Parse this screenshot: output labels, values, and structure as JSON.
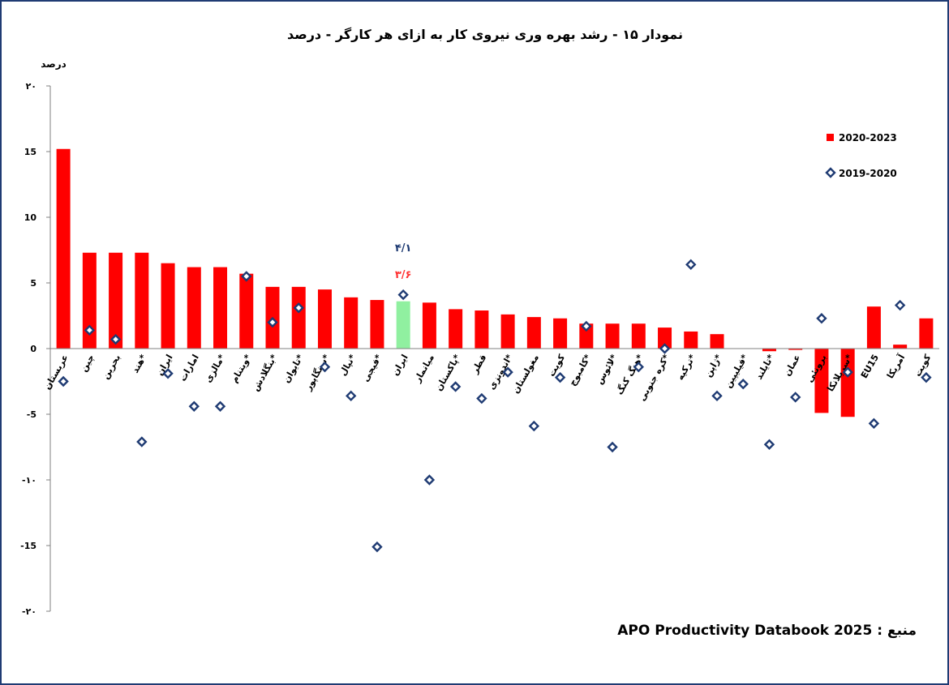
{
  "source": {
    "label": "منبع :",
    "text": "APO Productivity Databook 2025"
  },
  "chart_data": {
    "type": "bar",
    "title": "نمودار ۱۵ - رشد بهره وری نیروی کار به ازای هر کارگر - درصد",
    "ylabel": "درصد",
    "ylim": [
      -20,
      20
    ],
    "yticks": [
      {
        "value": 20,
        "label": "۲۰"
      },
      {
        "value": 15,
        "label": "15"
      },
      {
        "value": 10,
        "label": "10"
      },
      {
        "value": 5,
        "label": "5"
      },
      {
        "value": 0,
        "label": "0"
      },
      {
        "value": -5,
        "label": "-5"
      },
      {
        "value": -10,
        "label": "-۱۰"
      },
      {
        "value": -15,
        "label": "-15"
      },
      {
        "value": -20,
        "label": "-۲۰"
      }
    ],
    "categories": [
      "عربستان",
      "چین",
      "بحرین",
      "هند*",
      "ایران",
      "امارات",
      "مالزی*",
      "ویتنام*",
      "بنگلادش*",
      "تایوان*",
      "سنگاپور*",
      "نپال*",
      "فیجی*",
      "ایران",
      "میانمار",
      "پاکستان*",
      "قطر",
      "اندونزی*",
      "مغولستان",
      "کویت",
      "کامبوج*",
      "لائوس*",
      "هنگ کنگ*",
      "کره جنوبی*",
      "ترکیه*",
      "ژاپن*",
      "فیلیپین*",
      "تایلند*",
      "عمان",
      "برونئی",
      "سریلانکا*",
      "EU15",
      "آمریکا",
      "کویت"
    ],
    "highlight_index": 13,
    "legend_position": "top-right",
    "grid": false,
    "colors": {
      "bar": "#ff0000",
      "highlight": "#90f0a0",
      "marker": "#1f3b73"
    },
    "series": [
      {
        "name": "2020-2023",
        "kind": "bar",
        "values": [
          15.2,
          7.3,
          7.3,
          7.3,
          6.5,
          6.2,
          6.2,
          5.7,
          4.7,
          4.7,
          4.5,
          3.9,
          3.7,
          3.6,
          3.5,
          3.0,
          2.9,
          2.6,
          2.4,
          2.3,
          1.9,
          1.9,
          1.9,
          1.6,
          1.3,
          1.1,
          0,
          -0.2,
          -0.1,
          -4.9,
          -5.2,
          3.2,
          0.3,
          2.3
        ]
      },
      {
        "name": "2019-2020",
        "kind": "marker",
        "values": [
          -2.5,
          1.4,
          0.7,
          -7.1,
          -1.9,
          -4.4,
          -4.4,
          5.5,
          2.0,
          3.1,
          -1.4,
          -3.6,
          -15.1,
          4.1,
          -10.0,
          -2.9,
          -3.8,
          -1.8,
          -5.9,
          -2.2,
          1.7,
          -7.5,
          -1.4,
          0.0,
          6.4,
          -3.6,
          -2.7,
          -7.3,
          -3.7,
          2.3,
          -1.8,
          -5.7,
          3.3,
          -2.2
        ]
      }
    ],
    "annotations": [
      {
        "text": "۴/۱",
        "color": "#1f3b73",
        "series": "2019-2020"
      },
      {
        "text": "۳/۶",
        "color": "#ff3333",
        "series": "2020-2023"
      }
    ]
  }
}
